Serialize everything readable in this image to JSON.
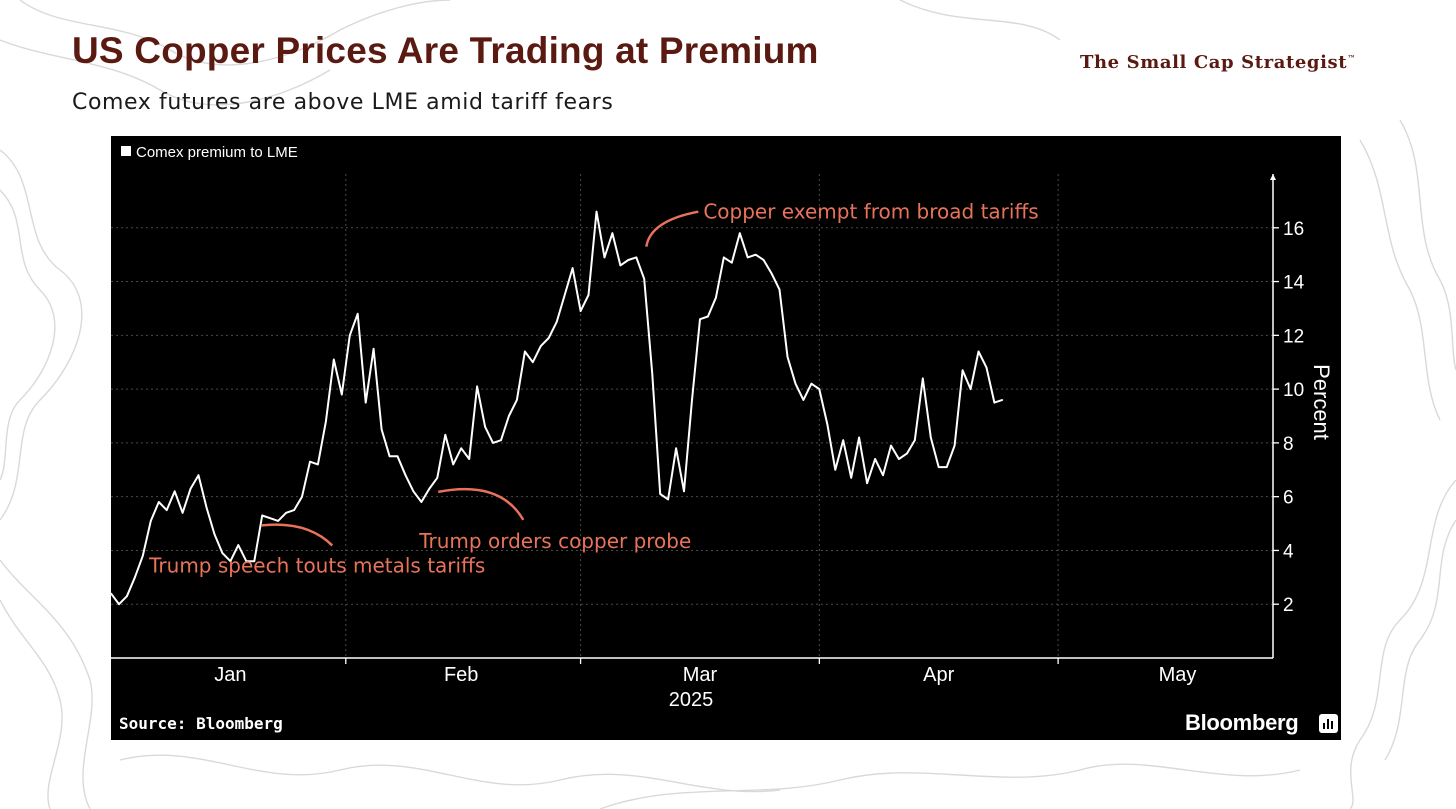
{
  "header": {
    "title": "US Copper Prices Are Trading at Premium",
    "subtitle": "Comex futures are above LME amid tariff fears",
    "brand": "The Small Cap Strategist",
    "brand_mark": "™"
  },
  "footer": {
    "source": "Source: Bloomberg",
    "logo_text": "Bloomberg"
  },
  "colors": {
    "title": "#5a1a12",
    "chart_background": "#000000",
    "series_line": "#ffffff",
    "annotation": "#e8735a",
    "gridline": "#4a4a4a"
  },
  "chart_data": {
    "type": "line",
    "legend": [
      "Comex premium to LME"
    ],
    "legend_position": "top-left",
    "grid": true,
    "xlabel": "2025",
    "ylabel": "Percent",
    "ylim": [
      0,
      18
    ],
    "yticks": [
      2,
      4,
      6,
      8,
      10,
      12,
      14,
      16
    ],
    "xlim": [
      "2025-01-01",
      "2025-05-27"
    ],
    "xticks": [
      {
        "label": "Jan",
        "date": "2025-01-16"
      },
      {
        "label": "Feb",
        "date": "2025-02-14"
      },
      {
        "label": "Mar",
        "date": "2025-03-16"
      },
      {
        "label": "Apr",
        "date": "2025-04-15"
      },
      {
        "label": "May",
        "date": "2025-05-15"
      }
    ],
    "series": [
      {
        "name": "Comex premium to LME",
        "points": [
          [
            "2025-01-01",
            2.4
          ],
          [
            "2025-01-02",
            2.0
          ],
          [
            "2025-01-03",
            2.3
          ],
          [
            "2025-01-04",
            3.0
          ],
          [
            "2025-01-05",
            3.8
          ],
          [
            "2025-01-06",
            5.1
          ],
          [
            "2025-01-07",
            5.8
          ],
          [
            "2025-01-08",
            5.5
          ],
          [
            "2025-01-09",
            6.2
          ],
          [
            "2025-01-10",
            5.4
          ],
          [
            "2025-01-11",
            6.3
          ],
          [
            "2025-01-12",
            6.8
          ],
          [
            "2025-01-13",
            5.6
          ],
          [
            "2025-01-14",
            4.6
          ],
          [
            "2025-01-15",
            3.9
          ],
          [
            "2025-01-16",
            3.6
          ],
          [
            "2025-01-17",
            4.2
          ],
          [
            "2025-01-18",
            3.6
          ],
          [
            "2025-01-19",
            3.6
          ],
          [
            "2025-01-20",
            5.3
          ],
          [
            "2025-01-21",
            5.2
          ],
          [
            "2025-01-22",
            5.1
          ],
          [
            "2025-01-23",
            5.4
          ],
          [
            "2025-01-24",
            5.5
          ],
          [
            "2025-01-25",
            6.0
          ],
          [
            "2025-01-26",
            7.3
          ],
          [
            "2025-01-27",
            7.2
          ],
          [
            "2025-01-28",
            8.8
          ],
          [
            "2025-01-29",
            11.1
          ],
          [
            "2025-01-30",
            9.8
          ],
          [
            "2025-01-31",
            12.0
          ],
          [
            "2025-02-01",
            12.8
          ],
          [
            "2025-02-02",
            9.5
          ],
          [
            "2025-02-03",
            11.5
          ],
          [
            "2025-02-04",
            8.5
          ],
          [
            "2025-02-05",
            7.5
          ],
          [
            "2025-02-06",
            7.5
          ],
          [
            "2025-02-07",
            6.8
          ],
          [
            "2025-02-08",
            6.2
          ],
          [
            "2025-02-09",
            5.8
          ],
          [
            "2025-02-10",
            6.3
          ],
          [
            "2025-02-11",
            6.7
          ],
          [
            "2025-02-12",
            8.3
          ],
          [
            "2025-02-13",
            7.2
          ],
          [
            "2025-02-14",
            7.8
          ],
          [
            "2025-02-15",
            7.4
          ],
          [
            "2025-02-16",
            10.1
          ],
          [
            "2025-02-17",
            8.6
          ],
          [
            "2025-02-18",
            8.0
          ],
          [
            "2025-02-19",
            8.1
          ],
          [
            "2025-02-20",
            9.0
          ],
          [
            "2025-02-21",
            9.6
          ],
          [
            "2025-02-22",
            11.4
          ],
          [
            "2025-02-23",
            11.0
          ],
          [
            "2025-02-24",
            11.6
          ],
          [
            "2025-02-25",
            11.9
          ],
          [
            "2025-02-26",
            12.5
          ],
          [
            "2025-02-27",
            13.5
          ],
          [
            "2025-02-28",
            14.5
          ],
          [
            "2025-03-01",
            12.9
          ],
          [
            "2025-03-02",
            13.5
          ],
          [
            "2025-03-03",
            16.6
          ],
          [
            "2025-03-04",
            14.9
          ],
          [
            "2025-03-05",
            15.8
          ],
          [
            "2025-03-06",
            14.6
          ],
          [
            "2025-03-07",
            14.8
          ],
          [
            "2025-03-08",
            14.9
          ],
          [
            "2025-03-09",
            14.1
          ],
          [
            "2025-03-10",
            10.6
          ],
          [
            "2025-03-11",
            6.1
          ],
          [
            "2025-03-12",
            5.9
          ],
          [
            "2025-03-13",
            7.8
          ],
          [
            "2025-03-14",
            6.2
          ],
          [
            "2025-03-15",
            9.6
          ],
          [
            "2025-03-16",
            12.6
          ],
          [
            "2025-03-17",
            12.7
          ],
          [
            "2025-03-18",
            13.4
          ],
          [
            "2025-03-19",
            14.9
          ],
          [
            "2025-03-20",
            14.7
          ],
          [
            "2025-03-21",
            15.8
          ],
          [
            "2025-03-22",
            14.9
          ],
          [
            "2025-03-23",
            15.0
          ],
          [
            "2025-03-24",
            14.8
          ],
          [
            "2025-03-25",
            14.3
          ],
          [
            "2025-03-26",
            13.7
          ],
          [
            "2025-03-27",
            11.2
          ],
          [
            "2025-03-28",
            10.2
          ],
          [
            "2025-03-29",
            9.6
          ],
          [
            "2025-03-30",
            10.2
          ],
          [
            "2025-03-31",
            10.0
          ],
          [
            "2025-04-01",
            8.7
          ],
          [
            "2025-04-02",
            7.0
          ],
          [
            "2025-04-03",
            8.1
          ],
          [
            "2025-04-04",
            6.7
          ],
          [
            "2025-04-05",
            8.2
          ],
          [
            "2025-04-06",
            6.5
          ],
          [
            "2025-04-07",
            7.4
          ],
          [
            "2025-04-08",
            6.8
          ],
          [
            "2025-04-09",
            7.9
          ],
          [
            "2025-04-10",
            7.4
          ],
          [
            "2025-04-11",
            7.6
          ],
          [
            "2025-04-12",
            8.1
          ],
          [
            "2025-04-13",
            10.4
          ],
          [
            "2025-04-14",
            8.2
          ],
          [
            "2025-04-15",
            7.1
          ],
          [
            "2025-04-16",
            7.1
          ],
          [
            "2025-04-17",
            7.9
          ],
          [
            "2025-04-18",
            10.7
          ],
          [
            "2025-04-19",
            10.0
          ],
          [
            "2025-04-20",
            11.4
          ],
          [
            "2025-04-21",
            10.8
          ],
          [
            "2025-04-22",
            9.5
          ],
          [
            "2025-04-23",
            9.6
          ]
        ]
      }
    ],
    "annotations": [
      {
        "text": "Trump speech touts metals tariffs",
        "date": "2025-01-20",
        "value": 4.0
      },
      {
        "text": "Trump orders copper probe",
        "date": "2025-02-12",
        "value": 6.4
      },
      {
        "text": "Copper exempt from broad tariffs",
        "date": "2025-03-07",
        "value": 15.0
      }
    ]
  }
}
